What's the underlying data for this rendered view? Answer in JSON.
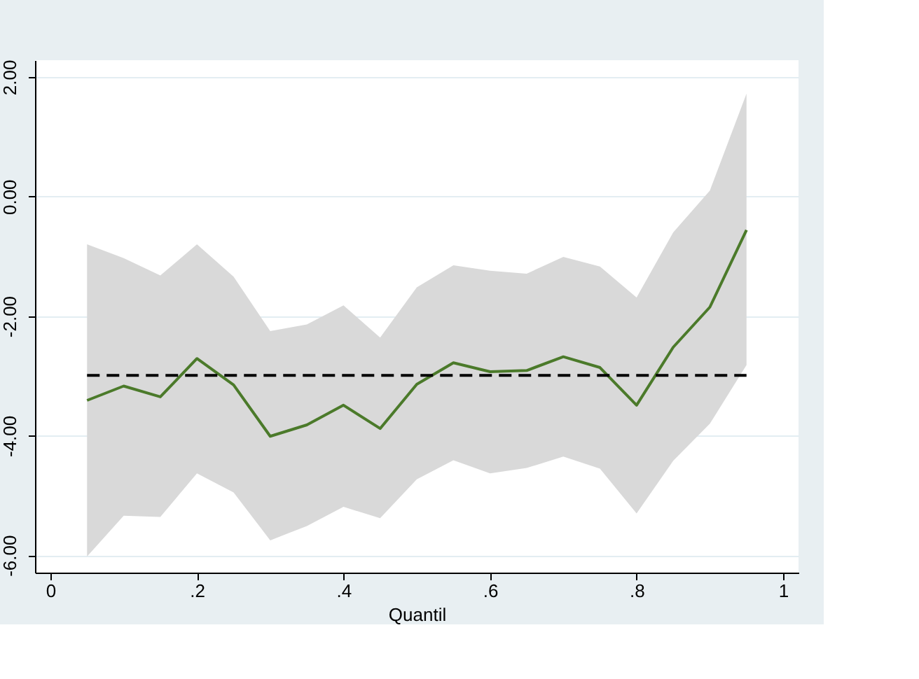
{
  "chart_data": {
    "type": "line",
    "xlabel": "Quantil",
    "xlim": [
      -0.021,
      1.021
    ],
    "xticks": [
      {
        "value": 0,
        "label": "0"
      },
      {
        "value": 0.2,
        "label": ".2"
      },
      {
        "value": 0.4,
        "label": ".4"
      },
      {
        "value": 0.6,
        "label": ".6"
      },
      {
        "value": 0.8,
        "label": ".8"
      },
      {
        "value": 1,
        "label": "1"
      }
    ],
    "ylim": [
      -6.29,
      2.28
    ],
    "yticks": [
      {
        "value": -6,
        "label": "-6.00"
      },
      {
        "value": -4,
        "label": "-4.00"
      },
      {
        "value": -2,
        "label": "-2.00"
      },
      {
        "value": 0,
        "label": "0.00"
      },
      {
        "value": 2,
        "label": "2.00"
      }
    ],
    "grid": "y",
    "legend": false,
    "marker": "none",
    "x": [
      0.05,
      0.1,
      0.15,
      0.2,
      0.25,
      0.3,
      0.35,
      0.4,
      0.45,
      0.5,
      0.55,
      0.6,
      0.65,
      0.7,
      0.75,
      0.8,
      0.85,
      0.9,
      0.95
    ],
    "series": [
      {
        "color": "#4b7a2a",
        "line_style": "solid",
        "values": [
          -3.41,
          -3.17,
          -3.35,
          -2.71,
          -3.15,
          -4.01,
          -3.82,
          -3.49,
          -3.88,
          -3.14,
          -2.78,
          -2.93,
          -2.91,
          -2.68,
          -2.86,
          -3.49,
          -2.52,
          -1.85,
          -0.56
        ],
        "lower": [
          -6.02,
          -5.34,
          -5.36,
          -4.63,
          -4.95,
          -5.75,
          -5.51,
          -5.19,
          -5.38,
          -4.73,
          -4.41,
          -4.63,
          -4.54,
          -4.35,
          -4.55,
          -5.3,
          -4.42,
          -3.8,
          -2.82
        ],
        "upper": [
          -0.8,
          -1.03,
          -1.32,
          -0.8,
          -1.34,
          -2.25,
          -2.14,
          -1.82,
          -2.36,
          -1.52,
          -1.15,
          -1.24,
          -1.29,
          -1.01,
          -1.17,
          -1.69,
          -0.6,
          0.1,
          1.72
        ]
      },
      {
        "type": "line",
        "color": "#000000",
        "line_style": "dashed",
        "x": [
          0.05,
          0.95
        ],
        "values": [
          -2.99,
          -2.99
        ]
      }
    ]
  }
}
